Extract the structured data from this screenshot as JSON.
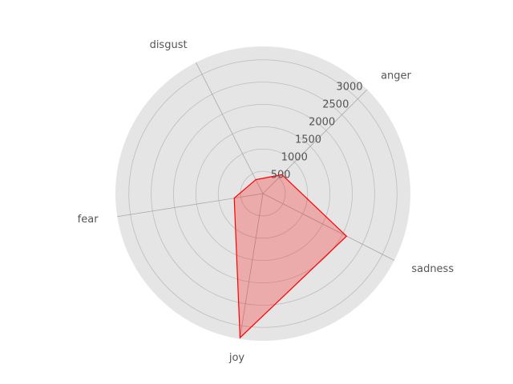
{
  "chart_data": {
    "type": "radar",
    "categories": [
      "anger",
      "sadness",
      "joy",
      "fear",
      "disgust"
    ],
    "values": [
      600,
      2100,
      3270,
      650,
      350
    ],
    "rlim": [
      0,
      3300
    ],
    "rticks": [
      500,
      1000,
      1500,
      2000,
      2500,
      3000
    ],
    "rtick_labels": [
      "500",
      "1000",
      "1500",
      "2000",
      "2500",
      "3000"
    ],
    "grid": true,
    "colors": {
      "background": "#e5e5e5",
      "line": "#ff0000",
      "fill": "#ff0000",
      "grid": "#bdbdbd",
      "text": "#555555"
    }
  }
}
